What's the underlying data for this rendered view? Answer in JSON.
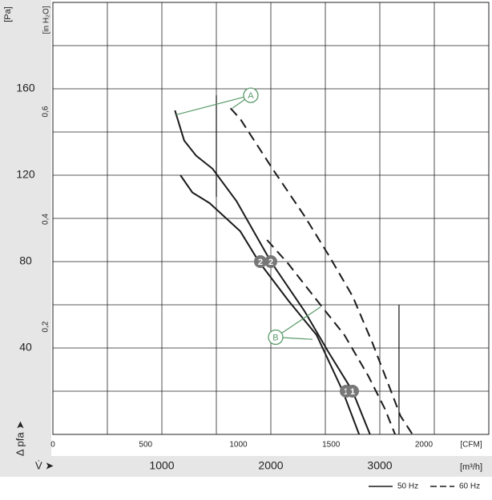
{
  "chart_data": {
    "type": "line",
    "xlim": [
      0,
      4000
    ],
    "xticks": [
      1000,
      2000,
      3000
    ],
    "xgrid": [
      500,
      1000,
      1500,
      2000,
      2500,
      3000,
      3500
    ],
    "x2lim": [
      0,
      2350
    ],
    "x2ticks": [
      0,
      500,
      1000,
      1500,
      2000
    ],
    "ylim": [
      0,
      200
    ],
    "yticks": [
      40,
      80,
      120,
      160
    ],
    "ygrid": [
      20,
      40,
      60,
      80,
      100,
      120,
      140,
      160,
      180
    ],
    "y2lim": [
      0,
      0.803
    ],
    "y2ticks": [
      {
        "value": 0.2,
        "label": "0,2"
      },
      {
        "value": 0.4,
        "label": "0,4"
      },
      {
        "value": 0.6,
        "label": "0,6"
      }
    ],
    "ylabel": "[Pa]",
    "y2label": "[in H₂O]",
    "ysymbol": "Δ pfa ➤",
    "xsymbol": "V̇ ➤",
    "xlabel": "[m³/h]",
    "x2label": "[CFM]",
    "series": [
      {
        "dash": "solid",
        "color": "#1a1a1a",
        "x": [
          1120,
          1205,
          1315,
          1465,
          1685,
          2000,
          2310,
          2530,
          2750,
          2910
        ],
        "values": [
          150,
          136,
          129,
          123,
          108,
          80,
          57,
          38,
          20,
          0
        ]
      },
      {
        "dash": "solid",
        "color": "#1a1a1a",
        "x": [
          1170,
          1280,
          1440,
          1720,
          1890,
          2160,
          2420,
          2660,
          2810
        ],
        "values": [
          120,
          112,
          107,
          94,
          80,
          62,
          46,
          20,
          0
        ]
      },
      {
        "dash": "dashed",
        "color": "#1a1a1a",
        "x": [
          1630,
          1720,
          2015,
          2310,
          2530,
          2750,
          2935,
          3080,
          3190,
          3300
        ],
        "values": [
          151,
          146,
          123,
          101,
          83,
          64,
          42,
          23,
          8.5,
          0
        ]
      },
      {
        "dash": "dashed",
        "color": "#1a1a1a",
        "x": [
          1965,
          2160,
          2455,
          2675,
          2895,
          3045,
          3140
        ],
        "values": [
          90,
          79,
          60,
          46,
          27,
          12,
          0
        ]
      }
    ],
    "vlines": [
      {
        "x": 1500,
        "y": [
          110,
          157
        ]
      },
      {
        "x": 3176,
        "y": [
          0,
          60
        ]
      }
    ],
    "badges": [
      {
        "text": "2",
        "x": 1904,
        "y": 80
      },
      {
        "text": "2",
        "x": 2000,
        "y": 80
      },
      {
        "text": "1",
        "x": 2691,
        "y": 20
      },
      {
        "text": "1",
        "x": 2750,
        "y": 20
      }
    ],
    "callouts": [
      {
        "text": "A",
        "x": 1816,
        "y": 157,
        "to": [
          [
            1132,
            148
          ],
          [
            1647,
            151
          ]
        ]
      },
      {
        "text": "B",
        "x": 2044,
        "y": 45,
        "to": [
          [
            2456,
            59
          ],
          [
            2382,
            44
          ]
        ]
      }
    ],
    "legend": [
      {
        "label": "50 Hz",
        "dash": "solid"
      },
      {
        "label": "60 Hz",
        "dash": "dashed"
      }
    ]
  }
}
